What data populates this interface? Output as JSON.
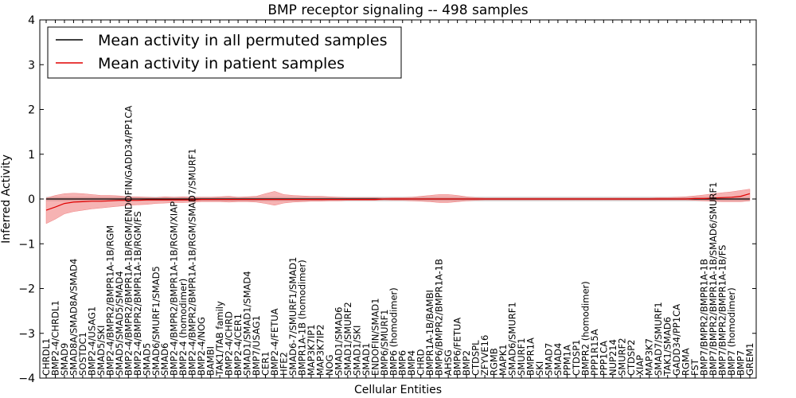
{
  "chart_data": {
    "type": "line",
    "title": "BMP receptor signaling -- 498 samples",
    "xlabel": "Cellular Entities",
    "ylabel": "Inferred Activity",
    "ylim": [
      -4,
      4
    ],
    "yticks": [
      -4,
      -3,
      -2,
      -1,
      0,
      1,
      2,
      3,
      4
    ],
    "legend_position": "top-left",
    "colors": {
      "permuted_line": "#000000",
      "permuted_band": "#bfbfbf",
      "patient_line": "#e00000",
      "patient_band": "#f08080"
    },
    "categories": [
      "CHRDL1",
      "BMP2-4/CHRDL1",
      "SMAD9",
      "SMAD8A/SMAD8A/SMAD4",
      "SOSTDC1",
      "BMP2-4/USAG1",
      "SMAD5/SKI",
      "BMP2-4/BMPR2/BMPR1A-1B/RGM",
      "SMAD5/SMAD5/SMAD4",
      "BMP2-4/BMPR2/BMPR1A-1B/RGM/ENDOFIN/GADD34/PP1CA",
      "BMP2-4/BMPR2/BMPR1A-1B/RGM/FS",
      "SMAD5",
      "SMAD6/SMURF1/SMAD5",
      "SMAD6",
      "BMP2-4/BMPR2/BMPR1A-1B/RGM/XIAP",
      "BMP2-4 (homodimer)",
      "BMP2-4/BMPR2/BMPR1A-1B/RGM/SMAD7/SMURF1",
      "BMP2-4/NOG",
      "BAMBI",
      "TAK1/TAB family",
      "BMP2-4/CHRD",
      "BMP2-4/CER1",
      "SMAD1/SMAD1/SMAD4",
      "BMP7/USAG1",
      "CER1",
      "BMP2-4/FETUA",
      "HFE2",
      "SMAD6-7/SMURF1/SMAD1",
      "BMPR1A-1B (homodimer)",
      "MAP3K7IP1",
      "MAP3K7IP2",
      "NOG",
      "SMAD1/SMAD6",
      "SMAD1/SMURF2",
      "SMAD1/SKI",
      "SMAD1",
      "ENDOFIN/SMAD1",
      "BMP6/SMURF1",
      "BMP6 (homodimer)",
      "BMP6",
      "BMP4",
      "CHRD",
      "BMPR1A-1B/BAMBI",
      "BMP6/BMPR2/BMPR1A-1B",
      "AHSG",
      "BMP6/FETUA",
      "BMP2",
      "CTDSPL",
      "ZFYVE16",
      "RGMB",
      "MAPK1",
      "SMAD6/SMURF1",
      "SMURF1",
      "BMPR1A",
      "SKI",
      "SMAD7",
      "SMAD4",
      "PPM1A",
      "CTDSP1",
      "BMPR2 (homodimer)",
      "PPP1R15A",
      "PPP1CA",
      "NUP214",
      "SMURF2",
      "CTDSP2",
      "XIAP",
      "MAP3K7",
      "SMAD7/SMURF1",
      "TAK1/SMAD6",
      "GADD34/PP1CA",
      "RGMA",
      "FST",
      "BMP7/BMPR2/BMPR1A-1B",
      "BMP7/BMPR2/BMPR1A-1B/SMAD6/SMURF1",
      "BMP7/BMPR2/BMPR1A-1B/FS",
      "BMP7 (homodimer)",
      "BMP7",
      "GREM1"
    ],
    "series": [
      {
        "name": "Mean activity in all permuted samples",
        "color": "#000000",
        "values": [
          0.0,
          0.0,
          0.0,
          0.0,
          0.0,
          0.0,
          0.0,
          0.0,
          0.0,
          0.0,
          0.0,
          0.0,
          0.0,
          0.0,
          0.0,
          0.0,
          0.0,
          0.0,
          0.0,
          0.0,
          0.0,
          0.0,
          0.0,
          0.0,
          0.0,
          0.0,
          0.0,
          0.0,
          0.0,
          0.0,
          0.0,
          0.0,
          0.0,
          0.0,
          0.0,
          0.0,
          0.0,
          0.0,
          0.0,
          0.0,
          0.0,
          0.0,
          0.0,
          0.0,
          0.0,
          0.0,
          0.0,
          0.0,
          0.0,
          0.0,
          0.0,
          0.0,
          0.0,
          0.0,
          0.0,
          0.0,
          0.0,
          0.0,
          0.0,
          0.0,
          0.0,
          0.0,
          0.0,
          0.0,
          0.0,
          0.0,
          0.0,
          0.0,
          0.0,
          0.0,
          0.0,
          0.0,
          0.0,
          0.0,
          0.0,
          0.0,
          0.0,
          0.0
        ],
        "band": 0.05
      },
      {
        "name": "Mean activity in patient samples",
        "color": "#e00000",
        "values": [
          -0.25,
          -0.18,
          -0.1,
          -0.07,
          -0.06,
          -0.05,
          -0.05,
          -0.04,
          -0.03,
          -0.03,
          -0.03,
          -0.02,
          -0.02,
          -0.02,
          -0.02,
          -0.02,
          -0.02,
          -0.01,
          -0.01,
          -0.01,
          -0.01,
          -0.01,
          -0.01,
          -0.01,
          -0.01,
          -0.01,
          -0.01,
          -0.01,
          -0.01,
          -0.01,
          -0.01,
          -0.01,
          -0.01,
          -0.01,
          -0.01,
          -0.01,
          -0.01,
          0.0,
          0.0,
          0.0,
          0.0,
          0.0,
          0.0,
          0.0,
          0.0,
          0.0,
          0.0,
          0.0,
          0.0,
          0.0,
          0.0,
          0.0,
          0.0,
          0.0,
          0.0,
          0.0,
          0.0,
          0.0,
          0.0,
          0.0,
          0.0,
          0.0,
          0.0,
          0.0,
          0.0,
          0.0,
          0.0,
          0.0,
          0.0,
          0.0,
          0.0,
          0.01,
          0.01,
          0.02,
          0.03,
          0.04,
          0.06,
          0.12
        ],
        "band_upper": [
          0.02,
          0.08,
          0.12,
          0.13,
          0.12,
          0.1,
          0.08,
          0.08,
          0.07,
          0.05,
          0.05,
          0.04,
          0.03,
          0.05,
          0.04,
          0.05,
          0.04,
          0.04,
          0.04,
          0.05,
          0.06,
          0.04,
          0.05,
          0.06,
          0.12,
          0.17,
          0.1,
          0.08,
          0.07,
          0.06,
          0.06,
          0.05,
          0.04,
          0.03,
          0.03,
          0.03,
          0.03,
          0.02,
          0.03,
          0.03,
          0.04,
          0.06,
          0.08,
          0.1,
          0.1,
          0.08,
          0.05,
          0.03,
          0.02,
          0.02,
          0.02,
          0.02,
          0.02,
          0.02,
          0.02,
          0.02,
          0.02,
          0.02,
          0.02,
          0.02,
          0.02,
          0.02,
          0.02,
          0.02,
          0.02,
          0.02,
          0.02,
          0.03,
          0.03,
          0.04,
          0.05,
          0.07,
          0.09,
          0.12,
          0.14,
          0.16,
          0.19,
          0.22
        ],
        "band_lower": [
          -0.55,
          -0.45,
          -0.33,
          -0.28,
          -0.25,
          -0.22,
          -0.2,
          -0.18,
          -0.16,
          -0.14,
          -0.13,
          -0.12,
          -0.1,
          -0.09,
          -0.08,
          -0.08,
          -0.07,
          -0.06,
          -0.06,
          -0.06,
          -0.07,
          -0.06,
          -0.06,
          -0.07,
          -0.1,
          -0.14,
          -0.09,
          -0.07,
          -0.06,
          -0.05,
          -0.05,
          -0.04,
          -0.04,
          -0.03,
          -0.03,
          -0.03,
          -0.03,
          -0.02,
          -0.03,
          -0.03,
          -0.04,
          -0.05,
          -0.06,
          -0.08,
          -0.08,
          -0.06,
          -0.04,
          -0.03,
          -0.02,
          -0.02,
          -0.02,
          -0.02,
          -0.02,
          -0.02,
          -0.02,
          -0.02,
          -0.02,
          -0.02,
          -0.02,
          -0.02,
          -0.02,
          -0.02,
          -0.02,
          -0.02,
          -0.02,
          -0.02,
          -0.02,
          -0.02,
          -0.02,
          -0.02,
          -0.02,
          -0.03,
          -0.04,
          -0.05,
          -0.06,
          -0.06,
          -0.06,
          -0.04
        ]
      }
    ]
  }
}
